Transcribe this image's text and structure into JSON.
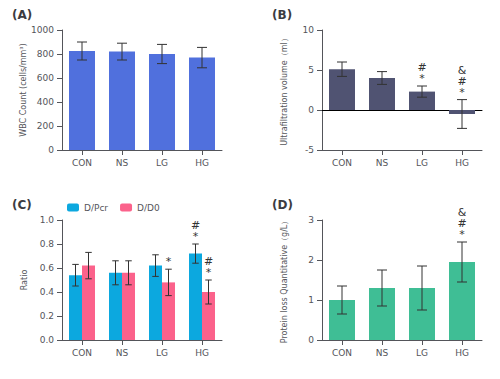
{
  "chart_data": [
    {
      "type": "bar",
      "title": "(A)",
      "categories": [
        "CON",
        "NS",
        "LG",
        "HG"
      ],
      "values": [
        825,
        820,
        800,
        770
      ],
      "errors": [
        75,
        70,
        80,
        85
      ],
      "ylabel": "WBC Count (cells/mm³)",
      "ylim": [
        0,
        1000
      ],
      "yticks": [
        0,
        200,
        400,
        600,
        800,
        1000
      ],
      "grid": false
    },
    {
      "type": "bar",
      "title": "(B)",
      "categories": [
        "CON",
        "NS",
        "LG",
        "HG"
      ],
      "values": [
        5.1,
        4.0,
        2.3,
        -0.5
      ],
      "errors": [
        0.9,
        0.8,
        0.7,
        1.8
      ],
      "ylabel": "Ultrafiltration volume（ml）",
      "ylim": [
        -5,
        10
      ],
      "yticks": [
        -5,
        0,
        5,
        10
      ],
      "grid": false,
      "annotations": [
        {
          "category": "LG",
          "text": "#"
        },
        {
          "category": "LG",
          "text": "*"
        },
        {
          "category": "HG",
          "text": "&"
        },
        {
          "category": "HG",
          "text": "#"
        },
        {
          "category": "HG",
          "text": "*"
        }
      ]
    },
    {
      "type": "bar",
      "title": "(C)",
      "categories": [
        "CON",
        "NS",
        "LG",
        "HG"
      ],
      "series": [
        {
          "name": "D/Pcr",
          "values": [
            0.54,
            0.56,
            0.62,
            0.72
          ],
          "errors": [
            0.09,
            0.1,
            0.09,
            0.08
          ]
        },
        {
          "name": "D/D0",
          "values": [
            0.62,
            0.56,
            0.48,
            0.4
          ],
          "errors": [
            0.11,
            0.1,
            0.11,
            0.1
          ]
        }
      ],
      "ylabel": "Ratio",
      "ylim": [
        0.0,
        1.0
      ],
      "yticks": [
        {
          "value": 0.0,
          "label": "0.0"
        },
        0.2,
        0.4,
        0.6,
        0.8,
        {
          "value": 1.0,
          "label": "1.0"
        }
      ],
      "legend": "upper left",
      "grid": false,
      "annotations": [
        {
          "category": "LG",
          "series": "D/D0",
          "text": "*"
        },
        {
          "category": "HG",
          "series": "D/Pcr",
          "text": "#"
        },
        {
          "category": "HG",
          "series": "D/Pcr",
          "text": "*"
        },
        {
          "category": "HG",
          "series": "D/D0",
          "text": "#"
        },
        {
          "category": "HG",
          "series": "D/D0",
          "text": "*"
        }
      ]
    },
    {
      "type": "bar",
      "title": "(D)",
      "categories": [
        "CON",
        "NS",
        "LG",
        "HG"
      ],
      "values": [
        1.0,
        1.3,
        1.3,
        1.95
      ],
      "errors": [
        0.35,
        0.45,
        0.55,
        0.5
      ],
      "ylabel": "Protein loss Quantitative（g/L）",
      "ylim": [
        0,
        3
      ],
      "yticks": [
        0,
        1,
        2,
        3
      ],
      "grid": false,
      "annotations": [
        {
          "category": "HG",
          "text": "&"
        },
        {
          "category": "HG",
          "text": "#"
        },
        {
          "category": "HG",
          "text": "*"
        }
      ]
    }
  ]
}
